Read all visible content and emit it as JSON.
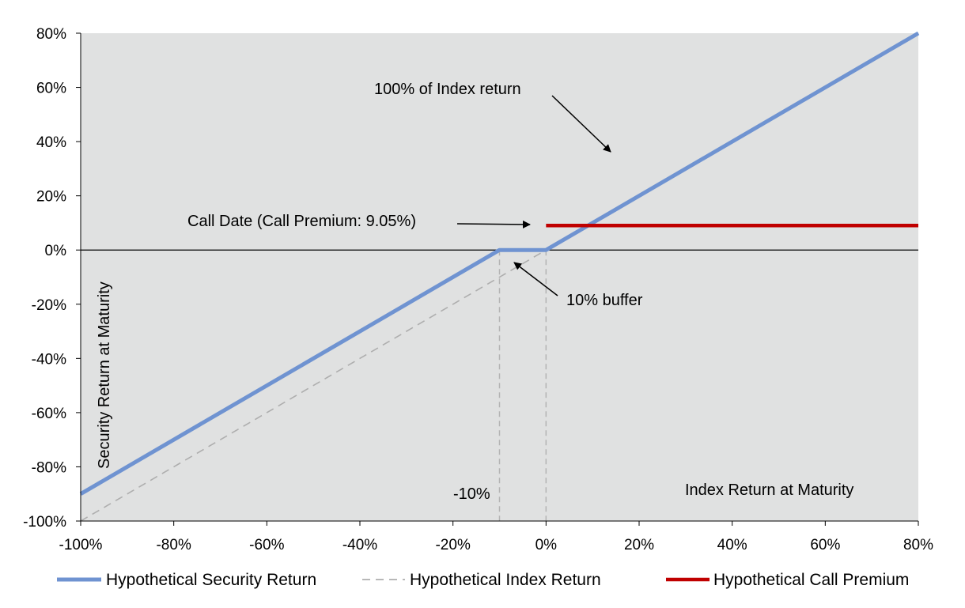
{
  "colors": {
    "plot_background": "#e0e1e1",
    "security": "#6f93d1",
    "index": "#aeaeae",
    "call_premium": "#c00000",
    "zero_line": "#000000",
    "guide_lines": "#b4b4b4"
  },
  "chart_data": {
    "type": "line",
    "title": "",
    "xlabel": "Index Return at Maturity",
    "ylabel": "Security Return at Maturity",
    "xlim": [
      -100,
      80
    ],
    "ylim": [
      -100,
      80
    ],
    "xticks": [
      "-100%",
      "-80%",
      "-60%",
      "-40%",
      "-20%",
      "0%",
      "20%",
      "40%",
      "60%",
      "80%"
    ],
    "yticks": [
      "80%",
      "60%",
      "40%",
      "20%",
      "0%",
      "-20%",
      "-40%",
      "-60%",
      "-80%",
      "-100%"
    ],
    "grid": false,
    "legend_position": "bottom",
    "series": [
      {
        "name": "Hypothetical Security Return",
        "style": "solid",
        "x": [
          -100,
          -10,
          0,
          80
        ],
        "y": [
          -90,
          0,
          0,
          80
        ]
      },
      {
        "name": "Hypothetical Index Return",
        "style": "dashed",
        "x": [
          -100,
          80
        ],
        "y": [
          -100,
          80
        ]
      },
      {
        "name": "Hypothetical Call Premium",
        "style": "solid",
        "x": [
          0,
          80
        ],
        "y": [
          9.05,
          9.05
        ]
      }
    ],
    "reference_lines": [
      -10,
      0
    ],
    "annotations": {
      "index_return": "100% of Index return",
      "call_date": "Call Date (Call Premium: 9.05%)",
      "buffer": "10% buffer",
      "buffer_level": "-10%"
    }
  }
}
